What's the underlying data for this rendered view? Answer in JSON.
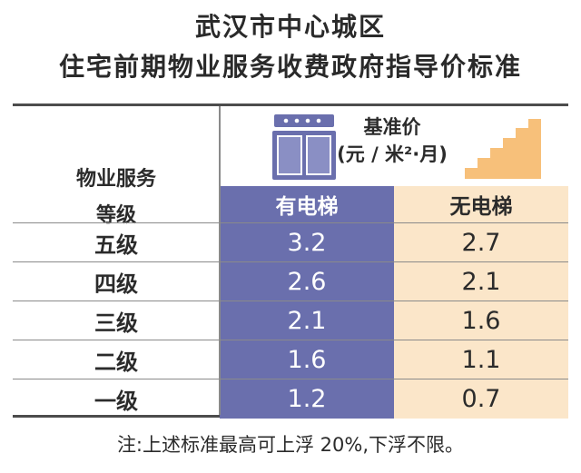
{
  "title_line1": "武汉市中心城区",
  "title_line2": "住宅前期物业服务收费政府指导价标准",
  "header": {
    "service_line1": "物业服务",
    "service_line2": "等级",
    "price_line1": "基准价",
    "price_line2": "(元 / 米²·月)",
    "with_elevator": "有电梯",
    "without_elevator": "无电梯"
  },
  "rows": [
    {
      "grade": "五级",
      "with_elevator": "3.2",
      "without_elevator": "2.7"
    },
    {
      "grade": "四级",
      "with_elevator": "2.6",
      "without_elevator": "2.1"
    },
    {
      "grade": "三级",
      "with_elevator": "2.1",
      "without_elevator": "1.6"
    },
    {
      "grade": "二级",
      "with_elevator": "1.6",
      "without_elevator": "1.1"
    },
    {
      "grade": "一级",
      "with_elevator": "1.2",
      "without_elevator": "0.7"
    }
  ],
  "note": "注:上述标准最高可上浮 20%,下浮不限。",
  "icons": {
    "elevator": "elevator-icon",
    "stairs": "stairs-icon"
  },
  "colors": {
    "elevator_column": "#6a6fad",
    "no_elevator_column": "#fbe6c9"
  }
}
